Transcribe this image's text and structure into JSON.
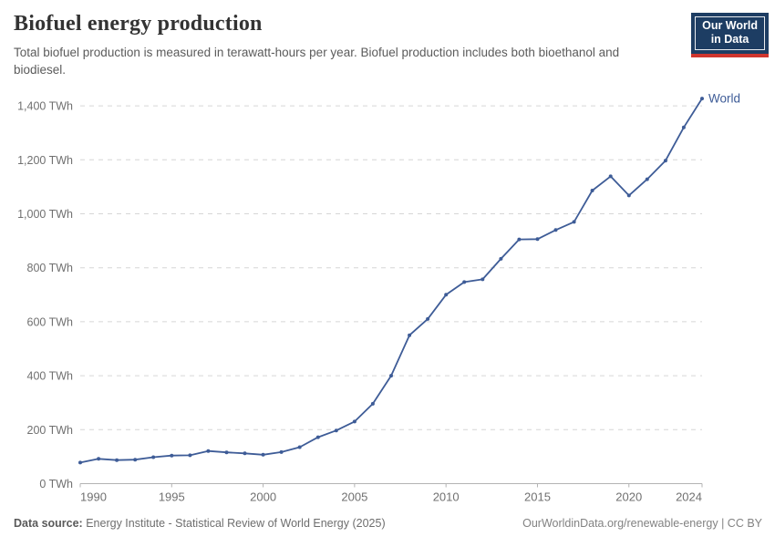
{
  "header": {
    "title": "Biofuel energy production",
    "subtitle": "Total biofuel production is measured in terawatt-hours per year. Biofuel production includes both bioethanol and biodiesel.",
    "logo": {
      "line1": "Our World",
      "line2": "in Data"
    }
  },
  "chart_data": {
    "type": "line",
    "title": "Biofuel energy production",
    "xlabel": "",
    "ylabel": "TWh",
    "grid": "horizontal-dashed",
    "legend_position": "end-of-line",
    "xlim": [
      1990,
      2024
    ],
    "ylim": [
      0,
      1450
    ],
    "x": [
      1990,
      1991,
      1992,
      1993,
      1994,
      1995,
      1996,
      1997,
      1998,
      1999,
      2000,
      2001,
      2002,
      2003,
      2004,
      2005,
      2006,
      2007,
      2008,
      2009,
      2010,
      2011,
      2012,
      2013,
      2014,
      2015,
      2016,
      2017,
      2018,
      2019,
      2020,
      2021,
      2022,
      2023,
      2024
    ],
    "series": [
      {
        "name": "World",
        "color": "#3e5c97",
        "values": [
          78,
          92,
          87,
          89,
          98,
          104,
          105,
          121,
          116,
          112,
          107,
          117,
          135,
          172,
          197,
          230,
          296,
          400,
          550,
          610,
          700,
          747,
          757,
          833,
          905,
          906,
          940,
          970,
          1086,
          1139,
          1068,
          1128,
          1197,
          1320,
          1427
        ]
      }
    ],
    "x_ticks": [
      1990,
      1995,
      2000,
      2005,
      2010,
      2015,
      2020,
      2024
    ],
    "y_ticks": [
      0,
      200,
      400,
      600,
      800,
      1000,
      1200,
      1400
    ],
    "y_tick_labels": [
      "0 TWh",
      "200 TWh",
      "400 TWh",
      "600 TWh",
      "800 TWh",
      "1,000 TWh",
      "1,200 TWh",
      "1,400 TWh"
    ],
    "end_label": "World"
  },
  "footer": {
    "source_label": "Data source:",
    "source_text": "Energy Institute - Statistical Review of World Energy (2025)",
    "link": "OurWorldinData.org/renewable-energy",
    "separator": "|",
    "license": "CC BY"
  },
  "colors": {
    "line": "#3e5c97",
    "grid": "#d6d6d6",
    "axis": "#b3b3b3",
    "tick_label": "#707070",
    "logo_bg": "#1d3d63",
    "logo_red": "#cf352e"
  }
}
